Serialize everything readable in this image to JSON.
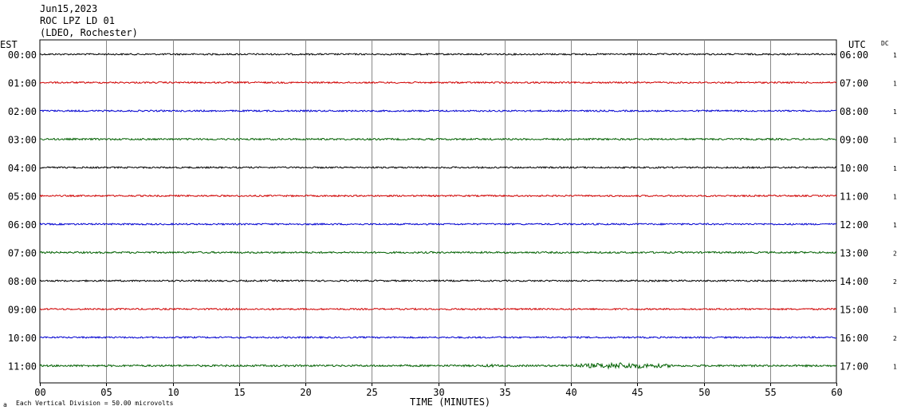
{
  "header": {
    "date": "Jun15,2023",
    "station": "ROC LPZ LD 01",
    "network": "(LDEO, Rochester)"
  },
  "left_zone": "EST",
  "right_zone": "UTC",
  "dc_label": "DC",
  "footer": {
    "scale_note": "Each Vertical Division =   50.00 microvolts",
    "corner_mark": "a"
  },
  "chart_data": {
    "type": "line",
    "xlabel": "TIME (MINUTES)",
    "xlim": [
      0,
      60
    ],
    "x_ticks": [
      "00",
      "05",
      "10",
      "15",
      "20",
      "25",
      "30",
      "35",
      "40",
      "45",
      "50",
      "55",
      "60"
    ],
    "grid": "vertical",
    "colors": [
      "#000000",
      "#d00000",
      "#0000d0",
      "#006000"
    ],
    "rows": [
      {
        "est": "00:00",
        "utc": "06:00",
        "dc": "1",
        "color": "#000000",
        "amplitude": 1.0
      },
      {
        "est": "01:00",
        "utc": "07:00",
        "dc": "1",
        "color": "#d00000",
        "amplitude": 1.0
      },
      {
        "est": "02:00",
        "utc": "08:00",
        "dc": "1",
        "color": "#0000d0",
        "amplitude": 1.0
      },
      {
        "est": "03:00",
        "utc": "09:00",
        "dc": "1",
        "color": "#006000",
        "amplitude": 1.1
      },
      {
        "est": "04:00",
        "utc": "10:00",
        "dc": "1",
        "color": "#000000",
        "amplitude": 1.0
      },
      {
        "est": "05:00",
        "utc": "11:00",
        "dc": "1",
        "color": "#d00000",
        "amplitude": 1.0
      },
      {
        "est": "06:00",
        "utc": "12:00",
        "dc": "1",
        "color": "#0000d0",
        "amplitude": 1.0
      },
      {
        "est": "07:00",
        "utc": "13:00",
        "dc": "2",
        "color": "#006000",
        "amplitude": 1.1
      },
      {
        "est": "08:00",
        "utc": "14:00",
        "dc": "2",
        "color": "#000000",
        "amplitude": 1.0
      },
      {
        "est": "09:00",
        "utc": "15:00",
        "dc": "1",
        "color": "#d00000",
        "amplitude": 1.0
      },
      {
        "est": "10:00",
        "utc": "16:00",
        "dc": "2",
        "color": "#0000d0",
        "amplitude": 1.0
      },
      {
        "est": "11:00",
        "utc": "17:00",
        "dc": "1",
        "color": "#006000",
        "amplitude": 1.2,
        "events": [
          {
            "start_min": 39.5,
            "end_min": 48,
            "amplitude": 4
          },
          {
            "start_min": 33,
            "end_min": 35,
            "amplitude": 2
          }
        ]
      }
    ]
  }
}
